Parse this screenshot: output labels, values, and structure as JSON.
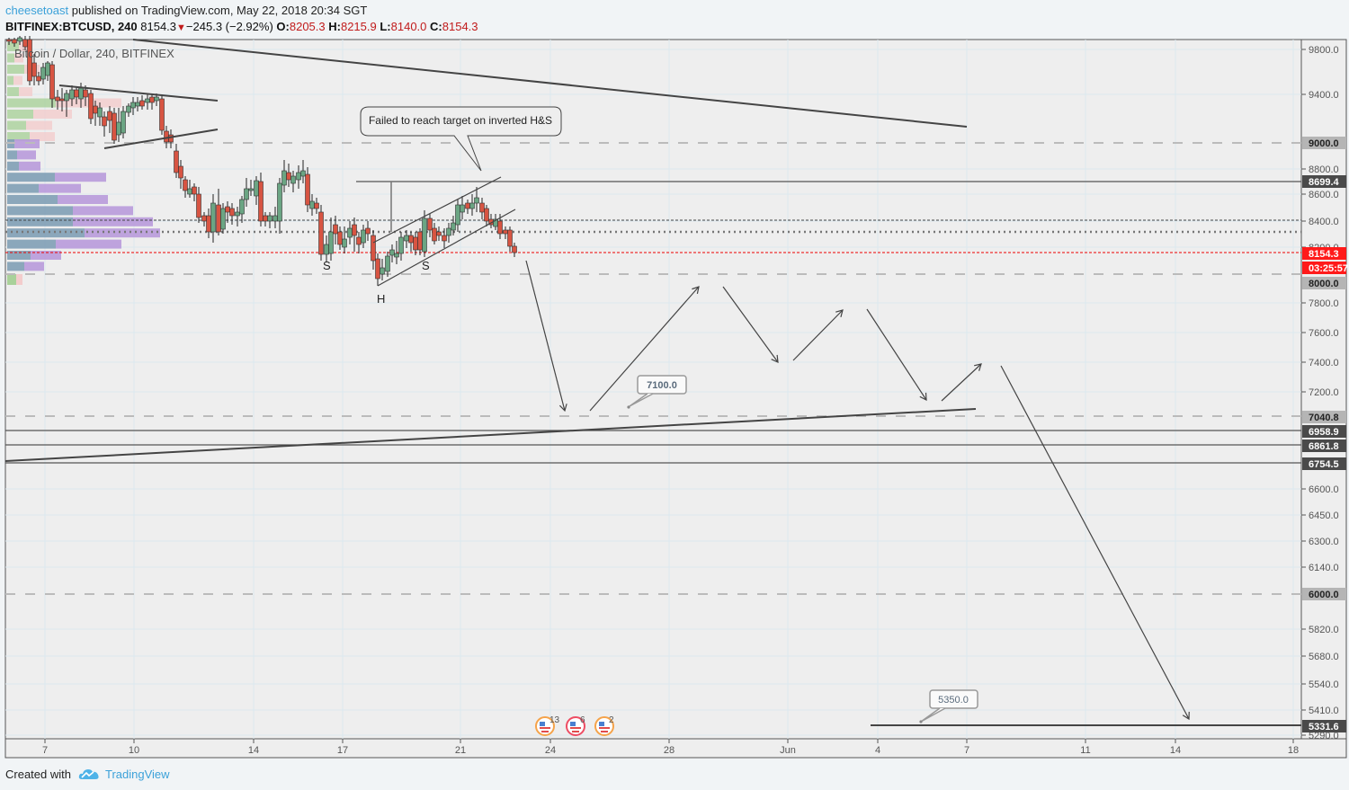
{
  "header": {
    "author": "cheesetoast",
    "published_text": "published on TradingView.com, May 22, 2018 20:34 SGT",
    "symbol": "BITFINEX:BTCUSD, 240",
    "last": "8154.3",
    "change": "−245.3 (−2.92%)",
    "open_label": "O:",
    "open": "8205.3",
    "high_label": "H:",
    "high": "8215.9",
    "low_label": "L:",
    "low": "8140.0",
    "close_label": "C:",
    "close": "8154.3"
  },
  "chart_title": "Bitcoin / Dollar, 240, BITFINEX",
  "footer": {
    "created_with": "Created with",
    "brand": "TradingView"
  },
  "colors": {
    "up": "#6ba583",
    "down": "#d75442",
    "price_line": "#ff0000",
    "accent": "#3ba1d9"
  },
  "chart_data": {
    "type": "candlestick",
    "title": "Bitcoin / Dollar, 240, BITFINEX",
    "xlabel": "",
    "ylabel": "",
    "x_ticks": [
      "7",
      "10",
      "14",
      "17",
      "21",
      "24",
      "28",
      "Jun",
      "4",
      "7",
      "11",
      "14",
      "18"
    ],
    "y_ticks": [
      "9800.0",
      "9400.0",
      "8800.0",
      "8600.0",
      "8400.0",
      "8200.0",
      "7800.0",
      "7600.0",
      "7400.0",
      "7200.0",
      "6600.0",
      "6450.0",
      "6300.0",
      "6140.0",
      "5820.0",
      "5680.0",
      "5540.0",
      "5410.0",
      "5290.0"
    ],
    "price_labels": [
      {
        "value": "9000.0",
        "style": "gray"
      },
      {
        "value": "8699.4",
        "style": "dark"
      },
      {
        "value": "8154.3",
        "style": "red"
      },
      {
        "value": "03:25:57",
        "style": "red"
      },
      {
        "value": "8000.0",
        "style": "gray"
      },
      {
        "value": "7040.8",
        "style": "gray"
      },
      {
        "value": "6958.9",
        "style": "dark"
      },
      {
        "value": "6861.8",
        "style": "dark"
      },
      {
        "value": "6754.5",
        "style": "dark"
      },
      {
        "value": "6000.0",
        "style": "gray"
      },
      {
        "value": "5331.6",
        "style": "dark"
      }
    ],
    "ylim": [
      5250,
      9900
    ],
    "last_price": 8154.3,
    "annotations": [
      {
        "type": "callout",
        "text": "Failed to reach target on inverted H&S"
      },
      {
        "type": "price_note",
        "text": "7100.0"
      },
      {
        "type": "price_note",
        "text": "5350.0"
      },
      {
        "type": "pattern_label",
        "text": "S"
      },
      {
        "type": "pattern_label",
        "text": "H"
      },
      {
        "type": "pattern_label",
        "text": "S"
      }
    ],
    "event_badges": [
      {
        "count": "13"
      },
      {
        "count": "6"
      },
      {
        "count": "2"
      }
    ],
    "legend": [],
    "grid": true
  }
}
